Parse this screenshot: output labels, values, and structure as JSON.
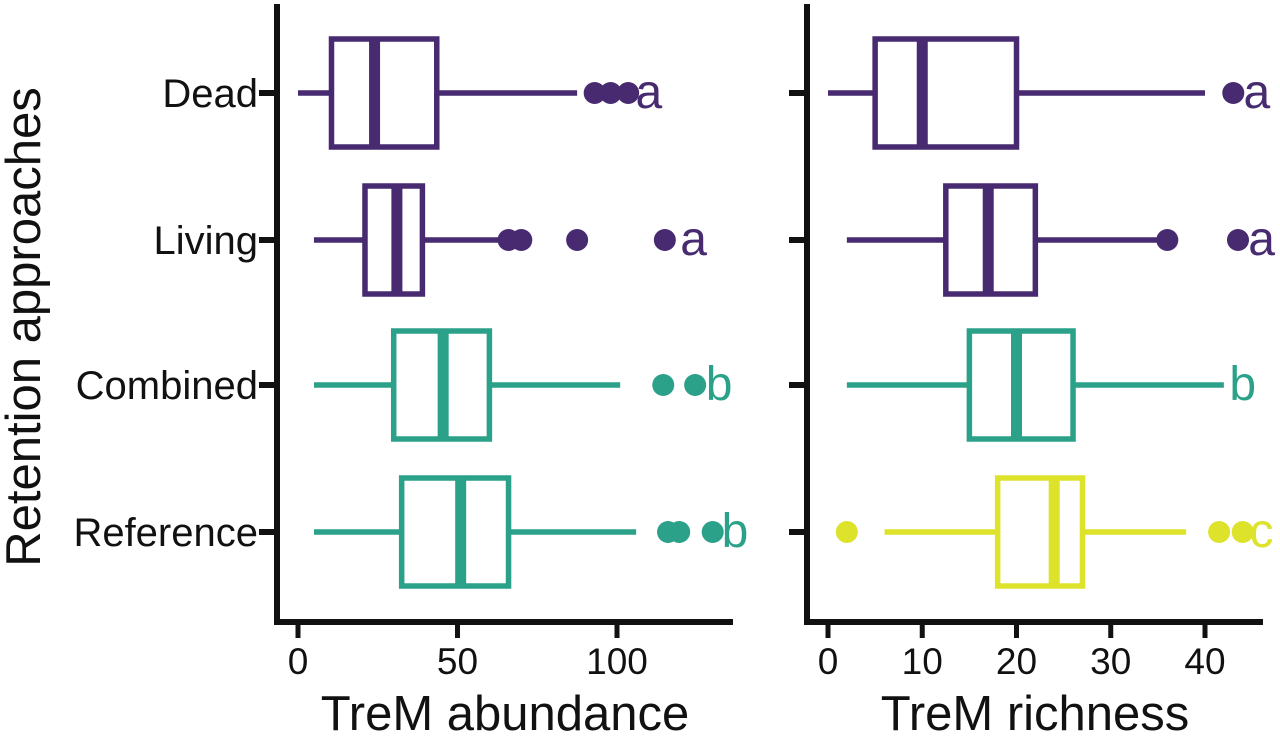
{
  "figure": {
    "y_axis_title": "Retention approaches",
    "categories": [
      "Dead",
      "Living",
      "Combined",
      "Reference"
    ]
  },
  "colors": {
    "group_a": "#472a70",
    "group_b": "#2aa188",
    "group_c": "#dde22b",
    "axis": "#111111",
    "box_fill": "#ffffff"
  },
  "chart_data": [
    {
      "type": "boxplot",
      "orientation": "horizontal",
      "panel": "left",
      "xlabel": "TreM abundance",
      "ylabel": "Retention approaches",
      "x_ticks": [
        0,
        50,
        100
      ],
      "xlim": [
        0,
        140
      ],
      "grid": false,
      "categories": [
        "Dead",
        "Living",
        "Combined",
        "Reference"
      ],
      "series": [
        {
          "category": "Dead",
          "group": "a",
          "letter": "a",
          "whisker_min": 0,
          "q1": 10.5,
          "median": 24,
          "q3": 43.5,
          "whisker_max": 87.5,
          "outliers": [
            93,
            98,
            103.5
          ],
          "letter_x": 110
        },
        {
          "category": "Living",
          "group": "a",
          "letter": "a",
          "whisker_min": 5,
          "q1": 21,
          "median": 31,
          "q3": 39,
          "whisker_max": 63.5,
          "outliers": [
            66,
            70,
            87.5,
            115
          ],
          "letter_x": 124
        },
        {
          "category": "Combined",
          "group": "b",
          "letter": "b",
          "whisker_min": 5,
          "q1": 30,
          "median": 45.5,
          "q3": 60,
          "whisker_max": 101,
          "outliers": [
            114.5,
            124.5
          ],
          "letter_x": 132
        },
        {
          "category": "Reference",
          "group": "b",
          "letter": "b",
          "whisker_min": 5,
          "q1": 32.5,
          "median": 51,
          "q3": 66,
          "whisker_max": 106,
          "outliers": [
            116,
            119.5,
            130
          ],
          "letter_x": 137
        }
      ]
    },
    {
      "type": "boxplot",
      "orientation": "horizontal",
      "panel": "right",
      "xlabel": "TreM richness",
      "ylabel": "Retention approaches",
      "x_ticks": [
        0,
        10,
        20,
        30,
        40
      ],
      "xlim": [
        0,
        46.5
      ],
      "grid": false,
      "categories": [
        "Dead",
        "Living",
        "Combined",
        "Reference"
      ],
      "series": [
        {
          "category": "Dead",
          "group": "a",
          "letter": "a",
          "whisker_min": 0,
          "q1": 5,
          "median": 10,
          "q3": 20,
          "whisker_max": 40,
          "outliers": [
            43
          ],
          "letter_x": 45.5
        },
        {
          "category": "Living",
          "group": "a",
          "letter": "a",
          "whisker_min": 2,
          "q1": 12.5,
          "median": 17,
          "q3": 22,
          "whisker_max": 36,
          "outliers": [
            36,
            43.5
          ],
          "letter_x": 46
        },
        {
          "category": "Combined",
          "group": "b",
          "letter": "b",
          "whisker_min": 2,
          "q1": 15,
          "median": 20,
          "q3": 26,
          "whisker_max": 42,
          "outliers": [],
          "letter_x": 44
        },
        {
          "category": "Reference",
          "group": "c",
          "letter": "c",
          "whisker_min": 6,
          "q1": 18,
          "median": 24,
          "q3": 27,
          "whisker_max": 38,
          "outliers": [
            2,
            41.5,
            44
          ],
          "letter_x": 46
        }
      ]
    }
  ]
}
